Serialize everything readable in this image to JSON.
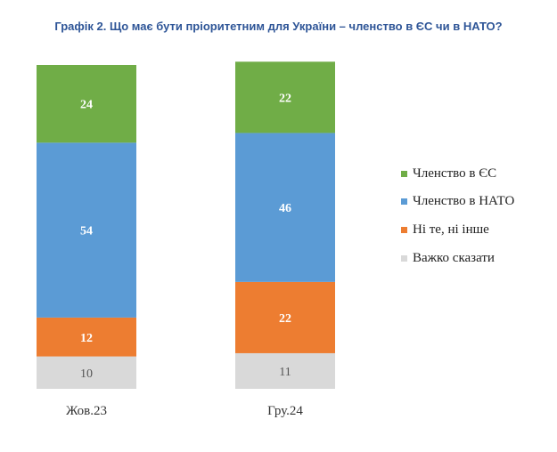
{
  "title": "Графік 2. Що має бути пріоритетним для України – членство в ЄС чи в НАТО?",
  "chart_data": {
    "type": "bar",
    "stacked": true,
    "categories": [
      "Жов.23",
      "Гру.24"
    ],
    "series": [
      {
        "name": "Важко сказати",
        "values": [
          10,
          11
        ],
        "color": "#d9d9d9",
        "label_color": "#555555"
      },
      {
        "name": "Ні те, ні інше",
        "values": [
          12,
          22
        ],
        "color": "#ed7d31",
        "label_color": "#ffffff"
      },
      {
        "name": "Членство в НАТО",
        "values": [
          54,
          46
        ],
        "color": "#5b9bd5",
        "label_color": "#ffffff"
      },
      {
        "name": "Членство в ЄС",
        "values": [
          24,
          22
        ],
        "color": "#70ad47",
        "label_color": "#ffffff"
      }
    ],
    "legend_order": [
      "Членство в ЄС",
      "Членство в НАТО",
      "Ні те, ні інше",
      "Важко сказати"
    ],
    "legend_position": "right",
    "grid": false,
    "ylim": [
      0,
      100
    ]
  }
}
